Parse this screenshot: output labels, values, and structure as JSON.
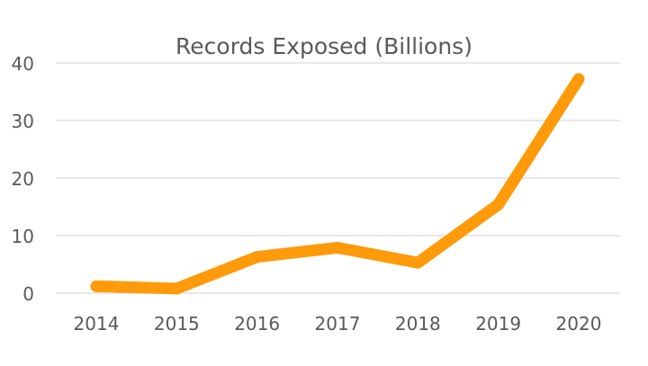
{
  "chart_data": {
    "type": "line",
    "title": "Records Exposed (Billions)",
    "xlabel": "",
    "ylabel": "",
    "categories": [
      "2014",
      "2015",
      "2016",
      "2017",
      "2018",
      "2019",
      "2020"
    ],
    "series": [
      {
        "values": [
          1.2,
          0.8,
          6.3,
          7.9,
          5.3,
          15.4,
          37.2
        ],
        "color": "#ff9a0a"
      }
    ],
    "ylim": [
      0,
      40
    ],
    "yticks": [
      "0",
      "10",
      "20",
      "30",
      "40"
    ],
    "grid": true,
    "gridColor": "#d9d9d9",
    "textColor": "#595959",
    "legend": "none"
  }
}
